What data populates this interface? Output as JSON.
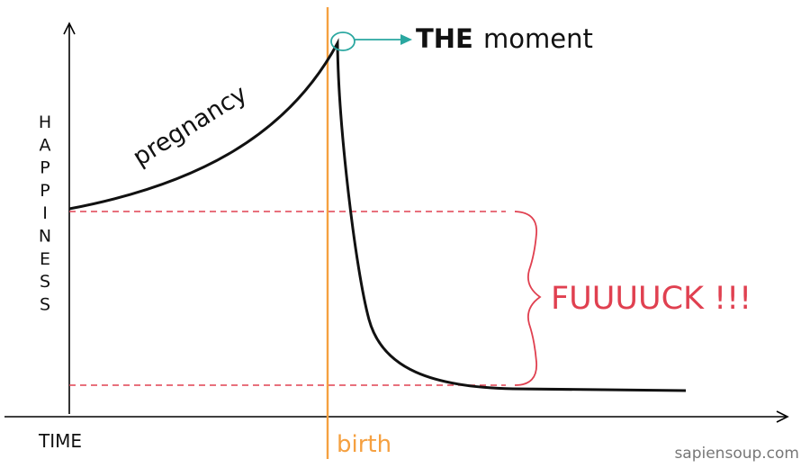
{
  "chart_data": {
    "type": "line",
    "title": "",
    "xlabel": "TIME",
    "ylabel": "HAPPINESS",
    "annotations": {
      "curve_label": "pregnancy",
      "peak_label_bold": "THE",
      "peak_label_rest": "moment",
      "event_label": "birth",
      "drop_label": "FUUUUCK !!!"
    },
    "watermark": "sapiensoup.com",
    "colors": {
      "axis": "#000000",
      "curve": "#111111",
      "birth_line": "#f5a040",
      "birth_text": "#f5a040",
      "dashed": "#e04050",
      "brace": "#e04050",
      "drop_text": "#e04050",
      "peak_marker": "#2aa7a0",
      "watermark": "#777777"
    },
    "grid": false
  }
}
